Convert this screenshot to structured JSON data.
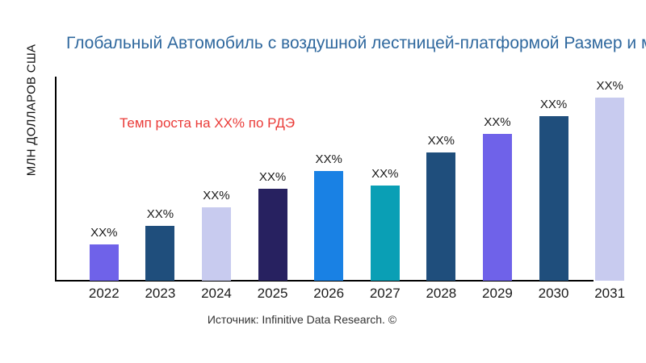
{
  "page": {
    "background": "#ffffff"
  },
  "chart_data": {
    "type": "bar",
    "title": "Глобальный Автомобиль с воздушной лестницей-платформой Размер и м",
    "ylabel": "МЛН ДОЛЛАРОВ США",
    "xlabel": "",
    "annotation": "Темп роста на XX% по РДЭ",
    "source": "Источник: Infinitive Data Research. ©",
    "categories": [
      "2022",
      "2023",
      "2024",
      "2025",
      "2026",
      "2027",
      "2028",
      "2029",
      "2030",
      "2031"
    ],
    "values": [
      20,
      30,
      40,
      50,
      60,
      52,
      70,
      80,
      90,
      100
    ],
    "bar_labels": [
      "XX%",
      "XX%",
      "XX%",
      "XX%",
      "XX%",
      "XX%",
      "XX%",
      "XX%",
      "XX%",
      "XX%"
    ],
    "ylim": [
      0,
      100
    ],
    "grid": false,
    "legend": false,
    "bar_colors": [
      "#6f62e9",
      "#1f4e7c",
      "#c8cbef",
      "#272160",
      "#1981e4",
      "#0a9fb5",
      "#1f4e7c",
      "#6f62e9",
      "#1f4e7c",
      "#c8cbef"
    ],
    "colors": {
      "title": "#2f689e",
      "annotation": "#ea3b38",
      "axis": "#000000",
      "tick_label": "#1a1a1a",
      "bar_label": "#1a1a1a",
      "source": "#333333"
    }
  }
}
